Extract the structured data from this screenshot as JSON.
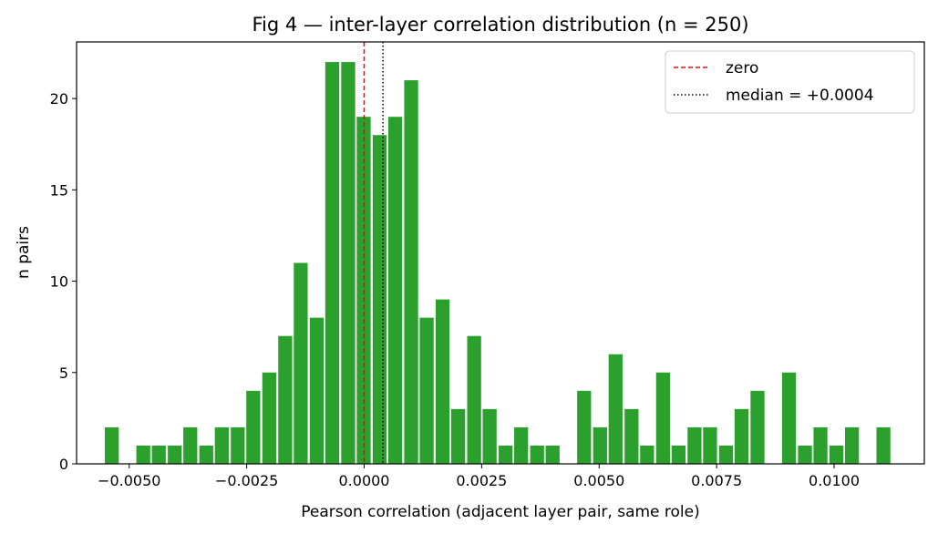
{
  "chart_data": {
    "type": "bar",
    "title": "Fig 4 — inter-layer correlation distribution (n = 250)",
    "xlabel": "Pearson correlation (adjacent layer pair, same role)",
    "ylabel": "n pairs",
    "xlim": [
      -0.00612,
      0.01192
    ],
    "ylim": [
      0,
      23.1
    ],
    "bin_width": 0.000335,
    "bar_color": "#2ca02c",
    "x_ticks": [
      -0.005,
      -0.0025,
      0,
      0.0025,
      0.005,
      0.0075,
      0.01
    ],
    "x_tick_labels": [
      "−0.0050",
      "−0.0025",
      "0.0000",
      "0.0025",
      "0.0050",
      "0.0075",
      "0.0100"
    ],
    "y_ticks": [
      0,
      5,
      10,
      15,
      20
    ],
    "y_tick_labels": [
      "0",
      "5",
      "10",
      "15",
      "20"
    ],
    "bins": [
      {
        "x": -0.00537,
        "count": 2
      },
      {
        "x": -0.0047,
        "count": 1
      },
      {
        "x": -0.00437,
        "count": 1
      },
      {
        "x": -0.00403,
        "count": 1
      },
      {
        "x": -0.0037,
        "count": 2
      },
      {
        "x": -0.00336,
        "count": 1
      },
      {
        "x": -0.00303,
        "count": 2
      },
      {
        "x": -0.00269,
        "count": 2
      },
      {
        "x": -0.00236,
        "count": 4
      },
      {
        "x": -0.00202,
        "count": 5
      },
      {
        "x": -0.00168,
        "count": 7
      },
      {
        "x": -0.00135,
        "count": 11
      },
      {
        "x": -0.00101,
        "count": 8
      },
      {
        "x": -0.00068,
        "count": 22
      },
      {
        "x": -0.00034,
        "count": 22
      },
      {
        "x": -1e-05,
        "count": 19
      },
      {
        "x": 0.00033,
        "count": 18
      },
      {
        "x": 0.00066,
        "count": 19
      },
      {
        "x": 0.001,
        "count": 21
      },
      {
        "x": 0.00133,
        "count": 8
      },
      {
        "x": 0.00167,
        "count": 9
      },
      {
        "x": 0.002,
        "count": 3
      },
      {
        "x": 0.00234,
        "count": 7
      },
      {
        "x": 0.00267,
        "count": 3
      },
      {
        "x": 0.00301,
        "count": 1
      },
      {
        "x": 0.00334,
        "count": 2
      },
      {
        "x": 0.00368,
        "count": 1
      },
      {
        "x": 0.00401,
        "count": 1
      },
      {
        "x": 0.00468,
        "count": 4
      },
      {
        "x": 0.00502,
        "count": 2
      },
      {
        "x": 0.00535,
        "count": 6
      },
      {
        "x": 0.00569,
        "count": 3
      },
      {
        "x": 0.00602,
        "count": 1
      },
      {
        "x": 0.00636,
        "count": 5
      },
      {
        "x": 0.00669,
        "count": 1
      },
      {
        "x": 0.00703,
        "count": 2
      },
      {
        "x": 0.00736,
        "count": 2
      },
      {
        "x": 0.0077,
        "count": 1
      },
      {
        "x": 0.00803,
        "count": 3
      },
      {
        "x": 0.00837,
        "count": 4
      },
      {
        "x": 0.00904,
        "count": 5
      },
      {
        "x": 0.00938,
        "count": 1
      },
      {
        "x": 0.00971,
        "count": 2
      },
      {
        "x": 0.01005,
        "count": 1
      },
      {
        "x": 0.01038,
        "count": 2
      },
      {
        "x": 0.01105,
        "count": 2
      }
    ],
    "reference_lines": [
      {
        "label": "zero",
        "x": 0.0,
        "color": "#ff0000",
        "style": "dashed"
      },
      {
        "label": "median = +0.0004",
        "x": 0.0004,
        "color": "#000000",
        "style": "dotted"
      }
    ],
    "legend_position": "top-right",
    "grid": false
  }
}
